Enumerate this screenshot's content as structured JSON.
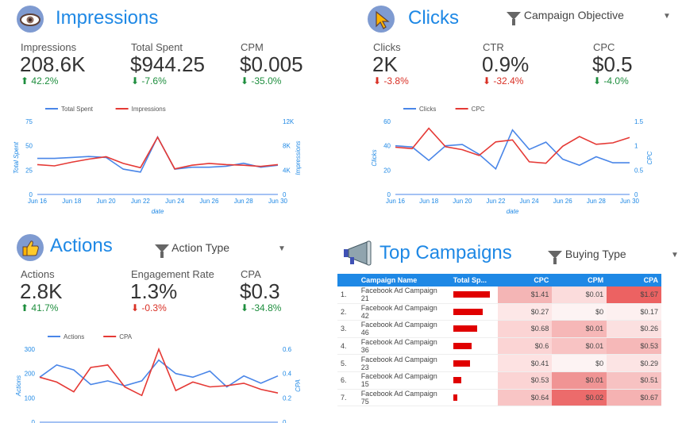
{
  "impressions": {
    "title": "Impressions",
    "kpis": [
      {
        "label": "Impressions",
        "value": "208.6K",
        "delta": "42.2%",
        "dir": "up"
      },
      {
        "label": "Total Spent",
        "value": "$944.25",
        "delta": "-7.6%",
        "dir": "down-good"
      },
      {
        "label": "CPM",
        "value": "$0.005",
        "delta": "-35.0%",
        "dir": "down-good"
      }
    ]
  },
  "clicks": {
    "title": "Clicks",
    "filter_label": "Campaign Objective",
    "kpis": [
      {
        "label": "Clicks",
        "value": "2K",
        "delta": "-3.8%",
        "dir": "down-bad"
      },
      {
        "label": "CTR",
        "value": "0.9%",
        "delta": "-32.4%",
        "dir": "down-bad"
      },
      {
        "label": "CPC",
        "value": "$0.5",
        "delta": "-4.0%",
        "dir": "down-good"
      }
    ]
  },
  "actions": {
    "title": "Actions",
    "filter_label": "Action Type",
    "kpis": [
      {
        "label": "Actions",
        "value": "2.8K",
        "delta": "41.7%",
        "dir": "up"
      },
      {
        "label": "Engagement Rate",
        "value": "1.3%",
        "delta": "-0.3%",
        "dir": "down-bad"
      },
      {
        "label": "CPA",
        "value": "$0.3",
        "delta": "-34.8%",
        "dir": "down-good"
      }
    ]
  },
  "top_campaigns": {
    "title": "Top Campaigns",
    "filter_label": "Buying Type",
    "columns": [
      "Campaign Name",
      "Total Sp...",
      "CPC",
      "CPM",
      "CPA"
    ],
    "rows": [
      {
        "idx": "1.",
        "name": "Facebook Ad Campaign 21",
        "spent_frac": 1.0,
        "cpc": "$1.41",
        "cpm": "$0.01",
        "cpa": "$1.67"
      },
      {
        "idx": "2.",
        "name": "Facebook Ad Campaign 42",
        "spent_frac": 0.82,
        "cpc": "$0.27",
        "cpm": "$0",
        "cpa": "$0.17"
      },
      {
        "idx": "3.",
        "name": "Facebook Ad Campaign 46",
        "spent_frac": 0.66,
        "cpc": "$0.68",
        "cpm": "$0.01",
        "cpa": "$0.26"
      },
      {
        "idx": "4.",
        "name": "Facebook Ad Campaign 36",
        "spent_frac": 0.5,
        "cpc": "$0.6",
        "cpm": "$0.01",
        "cpa": "$0.53"
      },
      {
        "idx": "5.",
        "name": "Facebook Ad Campaign 23",
        "spent_frac": 0.46,
        "cpc": "$0.41",
        "cpm": "$0",
        "cpa": "$0.29"
      },
      {
        "idx": "6.",
        "name": "Facebook Ad Campaign 15",
        "spent_frac": 0.22,
        "cpc": "$0.53",
        "cpm": "$0.01",
        "cpa": "$0.51"
      },
      {
        "idx": "7.",
        "name": "Facebook Ad Campaign 75",
        "spent_frac": 0.12,
        "cpc": "$0.64",
        "cpm": "$0.02",
        "cpa": "$0.67"
      }
    ]
  },
  "colors": {
    "blue": "#4a86e8",
    "red": "#e53935",
    "accent": "#1e88e5"
  },
  "chart_data": [
    {
      "type": "line",
      "x": [
        "Jun 16",
        "Jun 17",
        "Jun 18",
        "Jun 19",
        "Jun 20",
        "Jun 21",
        "Jun 22",
        "Jun 23",
        "Jun 24",
        "Jun 25",
        "Jun 26",
        "Jun 27",
        "Jun 28",
        "Jun 29",
        "Jun 30"
      ],
      "xticks": [
        "Jun 16",
        "Jun 18",
        "Jun 20",
        "Jun 22",
        "Jun 24",
        "Jun 26",
        "Jun 28",
        "Jun 30"
      ],
      "xlabel": "date",
      "ylabel_left": "Total Spent",
      "ylabel_right": "Impressions",
      "yticks_left": [
        "0",
        "25",
        "50",
        "75"
      ],
      "yticks_right": [
        "0",
        "4K",
        "8K",
        "12K"
      ],
      "ylim_left": [
        0,
        75
      ],
      "ylim_right": [
        0,
        12000
      ],
      "series": [
        {
          "name": "Total Spent",
          "axis": "left",
          "color": "#4a86e8",
          "values": [
            37,
            37,
            38,
            39,
            38,
            26,
            23,
            59,
            26,
            28,
            28,
            29,
            32,
            28,
            30
          ]
        },
        {
          "name": "Impressions",
          "axis": "right",
          "color": "#e53935",
          "values": [
            4900,
            4700,
            5300,
            5800,
            6200,
            5100,
            4400,
            9400,
            4200,
            4800,
            5100,
            4900,
            4800,
            4600,
            4900
          ]
        }
      ],
      "legend": "top-left"
    },
    {
      "type": "line",
      "x": [
        "Jun 16",
        "Jun 17",
        "Jun 18",
        "Jun 19",
        "Jun 20",
        "Jun 21",
        "Jun 22",
        "Jun 23",
        "Jun 24",
        "Jun 25",
        "Jun 26",
        "Jun 27",
        "Jun 28",
        "Jun 29",
        "Jun 30"
      ],
      "xticks": [
        "Jun 16",
        "Jun 18",
        "Jun 20",
        "Jun 22",
        "Jun 24",
        "Jun 26",
        "Jun 28",
        "Jun 30"
      ],
      "xlabel": "date",
      "ylabel_left": "Clicks",
      "ylabel_right": "CPC",
      "yticks_left": [
        "0",
        "20",
        "40",
        "60"
      ],
      "yticks_right": [
        "0",
        "0.5",
        "1",
        "1.5"
      ],
      "ylim_left": [
        0,
        60
      ],
      "ylim_right": [
        0,
        1.5
      ],
      "series": [
        {
          "name": "Clicks",
          "axis": "left",
          "color": "#4a86e8",
          "values": [
            40,
            39,
            28,
            40,
            41,
            33,
            21,
            53,
            37,
            43,
            29,
            24,
            31,
            26,
            26
          ]
        },
        {
          "name": "CPC",
          "axis": "right",
          "color": "#e53935",
          "values": [
            0.97,
            0.94,
            1.36,
            0.98,
            0.92,
            0.8,
            1.08,
            1.12,
            0.67,
            0.64,
            0.99,
            1.19,
            1.03,
            1.06,
            1.17
          ]
        }
      ],
      "legend": "top-left"
    },
    {
      "type": "line",
      "x": [
        "Jun 16",
        "Jun 17",
        "Jun 18",
        "Jun 19",
        "Jun 20",
        "Jun 21",
        "Jun 22",
        "Jun 23",
        "Jun 24",
        "Jun 25",
        "Jun 26",
        "Jun 27",
        "Jun 28",
        "Jun 29",
        "Jun 30"
      ],
      "xticks": [],
      "xlabel": "",
      "ylabel_left": "Actions",
      "ylabel_right": "CPA",
      "yticks_left": [
        "0",
        "100",
        "200",
        "300"
      ],
      "yticks_right": [
        "0",
        "0.2",
        "0.4",
        "0.6"
      ],
      "ylim_left": [
        0,
        300
      ],
      "ylim_right": [
        0,
        0.6
      ],
      "series": [
        {
          "name": "Actions",
          "axis": "left",
          "color": "#4a86e8",
          "values": [
            185,
            235,
            215,
            155,
            170,
            150,
            170,
            255,
            200,
            185,
            210,
            145,
            190,
            160,
            190
          ]
        },
        {
          "name": "CPA",
          "axis": "right",
          "color": "#e53935",
          "values": [
            0.37,
            0.33,
            0.25,
            0.45,
            0.47,
            0.29,
            0.22,
            0.6,
            0.26,
            0.33,
            0.29,
            0.3,
            0.32,
            0.27,
            0.24
          ]
        }
      ],
      "legend": "top-left"
    }
  ]
}
